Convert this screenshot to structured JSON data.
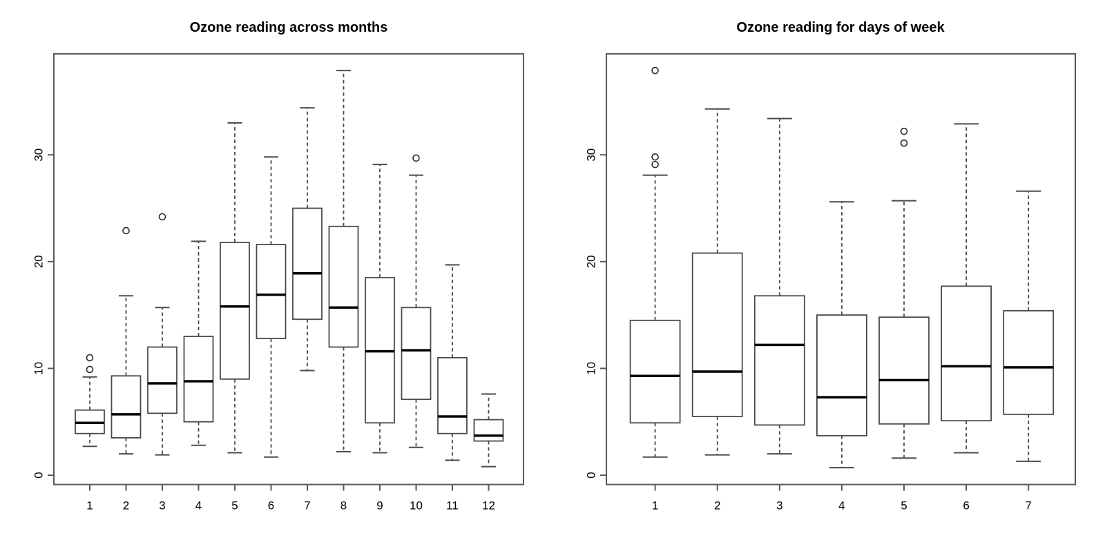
{
  "page": {
    "background": "#ffffff"
  },
  "chart_data": [
    {
      "type": "boxplot",
      "title": "Ozone reading across months",
      "xlabel": "",
      "ylabel": "",
      "categories": [
        "1",
        "2",
        "3",
        "4",
        "5",
        "6",
        "7",
        "8",
        "9",
        "10",
        "11",
        "12"
      ],
      "ytick_values": [
        0,
        10,
        20,
        30
      ],
      "ytick_labels": [
        "0",
        "10",
        "20",
        "30"
      ],
      "ylim": [
        -0.9,
        39.5
      ],
      "grid": false,
      "legend": "none",
      "frame_color": "#595959",
      "line_color": "#4a4a4a",
      "median_color": "#000000",
      "box_fill": "#ffffff",
      "series": [
        {
          "category": "1",
          "low": 2.7,
          "q1": 3.9,
          "median": 4.9,
          "q3": 6.1,
          "high": 9.2,
          "outliers": [
            9.9,
            11.0
          ]
        },
        {
          "category": "2",
          "low": 2.0,
          "q1": 3.5,
          "median": 5.7,
          "q3": 9.3,
          "high": 16.8,
          "outliers": [
            22.9
          ]
        },
        {
          "category": "3",
          "low": 1.9,
          "q1": 5.8,
          "median": 8.6,
          "q3": 12.0,
          "high": 15.7,
          "outliers": [
            24.2
          ]
        },
        {
          "category": "4",
          "low": 2.8,
          "q1": 5.0,
          "median": 8.8,
          "q3": 13.0,
          "high": 21.9,
          "outliers": []
        },
        {
          "category": "5",
          "low": 2.1,
          "q1": 9.0,
          "median": 15.8,
          "q3": 21.8,
          "high": 33.0,
          "outliers": []
        },
        {
          "category": "6",
          "low": 1.7,
          "q1": 12.8,
          "median": 16.9,
          "q3": 21.6,
          "high": 29.8,
          "outliers": []
        },
        {
          "category": "7",
          "low": 9.8,
          "q1": 14.6,
          "median": 18.9,
          "q3": 25.0,
          "high": 34.4,
          "outliers": []
        },
        {
          "category": "8",
          "low": 2.2,
          "q1": 12.0,
          "median": 15.7,
          "q3": 23.3,
          "high": 37.9,
          "outliers": []
        },
        {
          "category": "9",
          "low": 2.1,
          "q1": 4.9,
          "median": 11.6,
          "q3": 18.5,
          "high": 29.1,
          "outliers": []
        },
        {
          "category": "10",
          "low": 2.6,
          "q1": 7.1,
          "median": 11.7,
          "q3": 15.7,
          "high": 28.1,
          "outliers": [
            29.7
          ]
        },
        {
          "category": "11",
          "low": 1.4,
          "q1": 3.9,
          "median": 5.5,
          "q3": 11.0,
          "high": 19.7,
          "outliers": []
        },
        {
          "category": "12",
          "low": 0.8,
          "q1": 3.2,
          "median": 3.7,
          "q3": 5.2,
          "high": 7.6,
          "outliers": []
        }
      ]
    },
    {
      "type": "boxplot",
      "title": "Ozone reading for days of week",
      "xlabel": "",
      "ylabel": "",
      "categories": [
        "1",
        "2",
        "3",
        "4",
        "5",
        "6",
        "7"
      ],
      "ytick_values": [
        0,
        10,
        20,
        30
      ],
      "ytick_labels": [
        "0",
        "10",
        "20",
        "30"
      ],
      "ylim": [
        -0.9,
        39.5
      ],
      "grid": false,
      "legend": "none",
      "frame_color": "#595959",
      "line_color": "#4a4a4a",
      "median_color": "#000000",
      "box_fill": "#ffffff",
      "series": [
        {
          "category": "1",
          "low": 1.7,
          "q1": 4.9,
          "median": 9.3,
          "q3": 14.5,
          "high": 28.1,
          "outliers": [
            29.1,
            29.8,
            37.9
          ]
        },
        {
          "category": "2",
          "low": 1.9,
          "q1": 5.5,
          "median": 9.7,
          "q3": 20.8,
          "high": 34.3,
          "outliers": []
        },
        {
          "category": "3",
          "low": 2.0,
          "q1": 4.7,
          "median": 12.2,
          "q3": 16.8,
          "high": 33.4,
          "outliers": []
        },
        {
          "category": "4",
          "low": 0.7,
          "q1": 3.7,
          "median": 7.3,
          "q3": 15.0,
          "high": 25.6,
          "outliers": []
        },
        {
          "category": "5",
          "low": 1.6,
          "q1": 4.8,
          "median": 8.9,
          "q3": 14.8,
          "high": 25.7,
          "outliers": [
            31.1,
            32.2
          ]
        },
        {
          "category": "6",
          "low": 2.1,
          "q1": 5.1,
          "median": 10.2,
          "q3": 17.7,
          "high": 32.9,
          "outliers": []
        },
        {
          "category": "7",
          "low": 1.3,
          "q1": 5.7,
          "median": 10.1,
          "q3": 15.4,
          "high": 26.6,
          "outliers": []
        }
      ]
    }
  ]
}
